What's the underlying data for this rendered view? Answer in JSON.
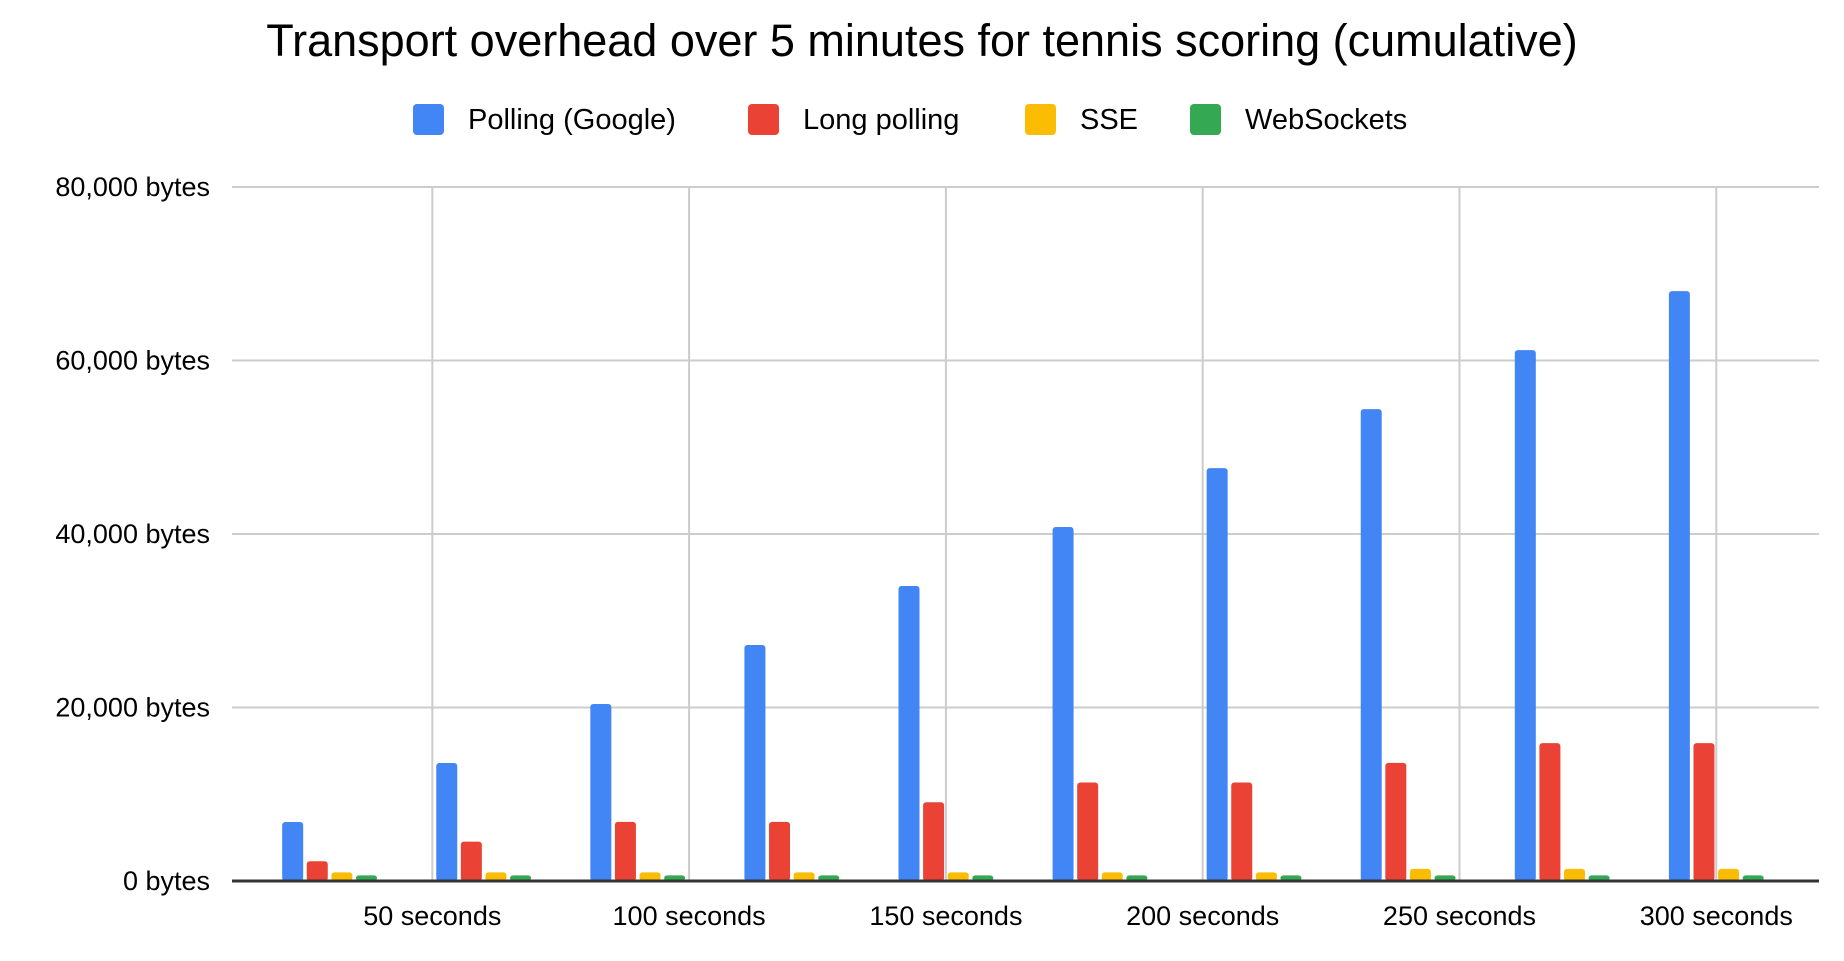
{
  "chart_data": {
    "type": "bar",
    "title": "Transport overhead over 5 minutes for tennis scoring (cumulative)",
    "xlabel": "",
    "ylabel": "",
    "x": [
      30,
      60,
      90,
      120,
      150,
      180,
      210,
      240,
      270,
      300
    ],
    "xlim": [
      11,
      320
    ],
    "x_ticks": [
      50,
      100,
      150,
      200,
      250,
      300
    ],
    "x_tick_labels": [
      "50 seconds",
      "100 seconds",
      "150 seconds",
      "200 seconds",
      "250 seconds",
      "300 seconds"
    ],
    "ylim": [
      0,
      80000
    ],
    "y_ticks": [
      0,
      20000,
      40000,
      60000,
      80000
    ],
    "y_tick_labels": [
      "0 bytes",
      "20,000 bytes",
      "40,000 bytes",
      "60,000 bytes",
      "80,000 bytes"
    ],
    "grid": true,
    "legend_position": "top",
    "series": [
      {
        "name": "Polling (Google)",
        "color": "#4285F4",
        "values": [
          6800,
          13600,
          20400,
          27200,
          34000,
          40800,
          47600,
          54400,
          61200,
          68000
        ]
      },
      {
        "name": "Long polling",
        "color": "#EA4335",
        "values": [
          2270,
          4540,
          6810,
          6810,
          9080,
          11350,
          11350,
          13620,
          15890,
          15890
        ]
      },
      {
        "name": "SSE",
        "color": "#FBBC04",
        "values": [
          1000,
          1000,
          1000,
          1000,
          1000,
          1000,
          1000,
          1400,
          1400,
          1400
        ]
      },
      {
        "name": "WebSockets",
        "color": "#34A853",
        "values": [
          650,
          650,
          650,
          650,
          650,
          650,
          650,
          650,
          650,
          650
        ]
      }
    ]
  }
}
